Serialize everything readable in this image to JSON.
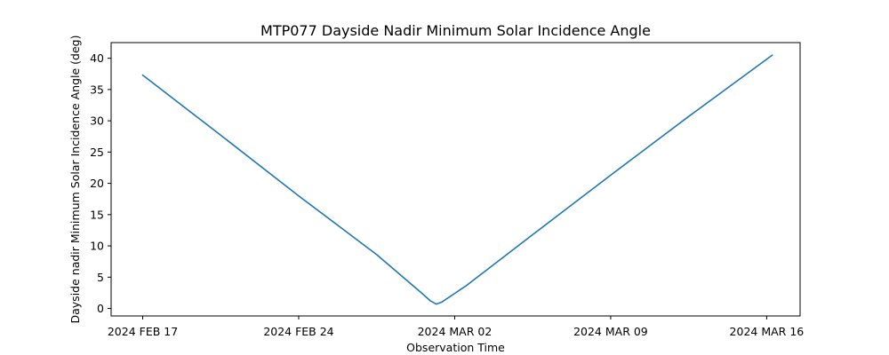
{
  "chart_data": {
    "type": "line",
    "title": "MTP077 Dayside Nadir Minimum Solar Incidence Angle",
    "xlabel": "Observation Time",
    "ylabel": "Dayside nadir Minimum Solar Incidence Angle (deg)",
    "x_ticks": [
      {
        "x": "2024-02-17",
        "label": "2024 FEB 17"
      },
      {
        "x": "2024-02-24",
        "label": "2024 FEB 24"
      },
      {
        "x": "2024-03-02",
        "label": "2024 MAR 02"
      },
      {
        "x": "2024-03-09",
        "label": "2024 MAR 09"
      },
      {
        "x": "2024-03-16",
        "label": "2024 MAR 16"
      }
    ],
    "xlim": [
      "2024-02-15T14:00",
      "2024-03-17T12:00"
    ],
    "y_ticks": [
      0,
      5,
      10,
      15,
      20,
      25,
      30,
      35,
      40
    ],
    "ylim": [
      -1.2,
      42.5
    ],
    "grid": false,
    "series": [
      {
        "color": "#1f77b4",
        "points": [
          {
            "x": "2024-02-17T00:00",
            "y": 37.3
          },
          {
            "x": "2024-02-20T12:00",
            "y": 27.7
          },
          {
            "x": "2024-02-24T00:00",
            "y": 18.0
          },
          {
            "x": "2024-02-27T12:00",
            "y": 8.6
          },
          {
            "x": "2024-02-29T12:00",
            "y": 2.5
          },
          {
            "x": "2024-02-29T22:00",
            "y": 1.2
          },
          {
            "x": "2024-03-01T04:00",
            "y": 0.7
          },
          {
            "x": "2024-03-01T10:00",
            "y": 1.0
          },
          {
            "x": "2024-03-01T20:00",
            "y": 2.0
          },
          {
            "x": "2024-03-02T12:00",
            "y": 3.6
          },
          {
            "x": "2024-03-05T12:00",
            "y": 11.8
          },
          {
            "x": "2024-03-09T00:00",
            "y": 21.3
          },
          {
            "x": "2024-03-12T12:00",
            "y": 30.7
          },
          {
            "x": "2024-03-16T06:00",
            "y": 40.5
          }
        ]
      }
    ]
  }
}
